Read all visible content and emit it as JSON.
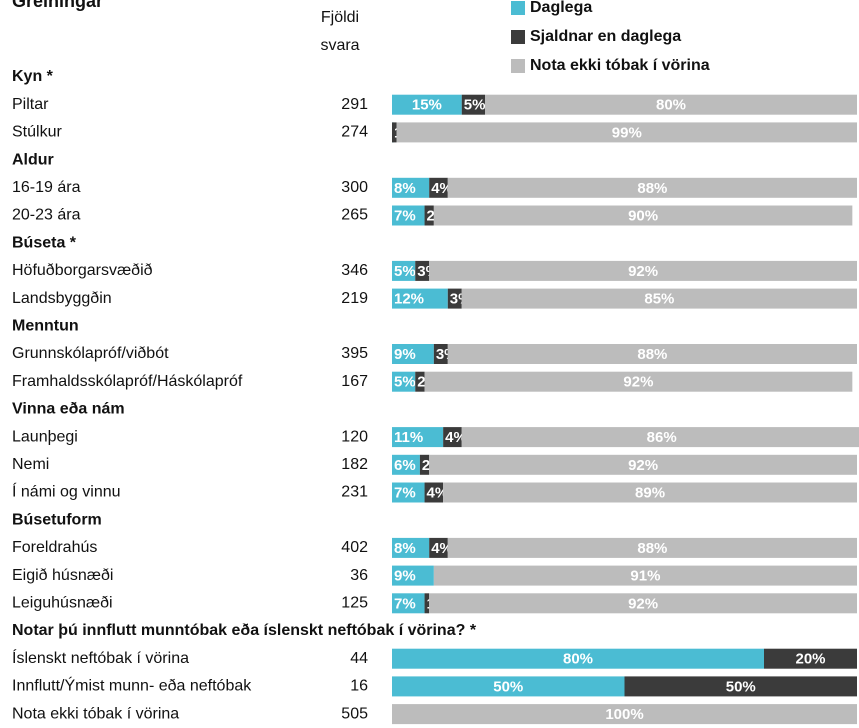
{
  "chart_data": {
    "type": "bar",
    "title": "Greiningar",
    "count_header": [
      "Fjöldi",
      "svara"
    ],
    "stacked": true,
    "xlim": [
      0,
      100
    ],
    "series": [
      {
        "name": "Daglega",
        "color": "#4bbcd3"
      },
      {
        "name": "Sjaldnar en daglega",
        "color": "#3b3b3b"
      },
      {
        "name": "Nota ekki tóbak í vörina",
        "color": "#bcbcbc"
      }
    ],
    "groups": [
      {
        "name": "Kyn *",
        "rows": [
          {
            "label": "Piltar",
            "n": 291,
            "values": [
              15,
              5,
              80
            ],
            "value_labels": [
              "15%",
              "5%",
              "80%"
            ]
          },
          {
            "label": "Stúlkur",
            "n": 274,
            "values": [
              0,
              1,
              99
            ],
            "value_labels": [
              "0%",
              "1%",
              "99%"
            ]
          }
        ]
      },
      {
        "name": "Aldur",
        "rows": [
          {
            "label": "16-19 ára",
            "n": 300,
            "values": [
              8,
              4,
              88
            ],
            "value_labels": [
              "8%",
              "4%",
              "88%"
            ]
          },
          {
            "label": "20-23 ára",
            "n": 265,
            "values": [
              7,
              2,
              90
            ],
            "value_labels": [
              "7%",
              "2%",
              "90%"
            ]
          }
        ]
      },
      {
        "name": "Búseta *",
        "rows": [
          {
            "label": "Höfuðborgarsvæðið",
            "n": 346,
            "values": [
              5,
              3,
              92
            ],
            "value_labels": [
              "5%",
              "3%",
              "92%"
            ]
          },
          {
            "label": "Landsbyggðin",
            "n": 219,
            "values": [
              12,
              3,
              85
            ],
            "value_labels": [
              "12%",
              "3%",
              "85%"
            ]
          }
        ]
      },
      {
        "name": "Menntun",
        "rows": [
          {
            "label": "Grunnskólapróf/viðbót",
            "n": 395,
            "values": [
              9,
              3,
              88
            ],
            "value_labels": [
              "9%",
              "3%",
              "88%"
            ]
          },
          {
            "label": "Framhaldsskólapróf/Háskólapróf",
            "n": 167,
            "values": [
              5,
              2,
              92
            ],
            "value_labels": [
              "5%",
              "2%",
              "92%"
            ]
          }
        ]
      },
      {
        "name": "Vinna eða nám",
        "rows": [
          {
            "label": "Launþegi",
            "n": 120,
            "values": [
              11,
              4,
              86
            ],
            "value_labels": [
              "11%",
              "4%",
              "86%"
            ]
          },
          {
            "label": "Nemi",
            "n": 182,
            "values": [
              6,
              2,
              92
            ],
            "value_labels": [
              "6%",
              "2%",
              "92%"
            ]
          },
          {
            "label": "Í námi og vinnu",
            "n": 231,
            "values": [
              7,
              4,
              89
            ],
            "value_labels": [
              "7%",
              "4%",
              "89%"
            ]
          }
        ]
      },
      {
        "name": "Búsetuform",
        "rows": [
          {
            "label": "Foreldrahús",
            "n": 402,
            "values": [
              8,
              4,
              88
            ],
            "value_labels": [
              "8%",
              "4%",
              "88%"
            ]
          },
          {
            "label": "Eigið húsnæði",
            "n": 36,
            "values": [
              9,
              null,
              91
            ],
            "value_labels": [
              "9%",
              null,
              "91%"
            ]
          },
          {
            "label": "Leiguhúsnæði",
            "n": 125,
            "values": [
              7,
              1,
              92
            ],
            "value_labels": [
              "7%",
              "1%",
              "92%"
            ]
          }
        ]
      },
      {
        "name": "Notar þú innflutt munntóbak eða íslenskt neftóbak í vörina? *",
        "rows": [
          {
            "label": "Íslenskt neftóbak í vörina",
            "n": 44,
            "values": [
              80,
              20,
              null
            ],
            "value_labels": [
              "80%",
              "20%",
              null
            ]
          },
          {
            "label": "Innflutt/Ýmist munn- eða neftóbak",
            "n": 16,
            "values": [
              50,
              50,
              null
            ],
            "value_labels": [
              "50%",
              "50%",
              null
            ]
          },
          {
            "label": "Nota ekki tóbak í vörina",
            "n": 505,
            "values": [
              null,
              null,
              100
            ],
            "value_labels": [
              null,
              null,
              "100%"
            ]
          }
        ]
      }
    ]
  }
}
